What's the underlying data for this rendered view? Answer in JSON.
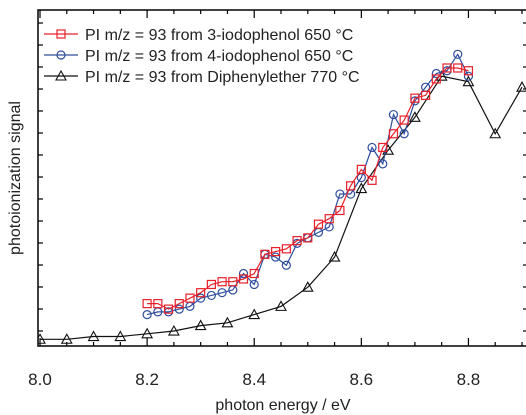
{
  "chart_data": {
    "type": "line",
    "xlabel": "photon energy / eV",
    "ylabel": "photoionization signal",
    "xlim": [
      8.0,
      8.9
    ],
    "ylim": [
      0,
      1
    ],
    "x_ticks": [
      "8.0",
      "8.2",
      "8.4",
      "8.6",
      "8.8"
    ],
    "x_tick_values": [
      8.0,
      8.2,
      8.4,
      8.6,
      8.8
    ],
    "y_tick_labels_shown": false,
    "grid": false,
    "legend_position": "top-left",
    "series": [
      {
        "name": "PI m/z = 93 from 3-iodophenol 650 °C",
        "color": "#e8202a",
        "marker": "square",
        "x": [
          8.2,
          8.22,
          8.24,
          8.26,
          8.28,
          8.3,
          8.32,
          8.34,
          8.36,
          8.38,
          8.4,
          8.42,
          8.44,
          8.46,
          8.48,
          8.5,
          8.52,
          8.54,
          8.56,
          8.58,
          8.6,
          8.62,
          8.64,
          8.66,
          8.68,
          8.7,
          8.72,
          8.74,
          8.76,
          8.78,
          8.8
        ],
        "values": [
          0.14,
          0.14,
          0.12,
          0.14,
          0.16,
          0.18,
          0.21,
          0.22,
          0.22,
          0.23,
          0.25,
          0.32,
          0.33,
          0.34,
          0.37,
          0.38,
          0.43,
          0.45,
          0.48,
          0.57,
          0.63,
          0.59,
          0.71,
          0.76,
          0.81,
          0.89,
          0.9,
          0.96,
          1.0,
          1.0,
          0.99
        ]
      },
      {
        "name": "PI m/z = 93 from 4-iodophenol 650 °C",
        "color": "#2e4d9c",
        "marker": "circle",
        "x": [
          8.2,
          8.22,
          8.24,
          8.26,
          8.28,
          8.3,
          8.32,
          8.34,
          8.36,
          8.38,
          8.4,
          8.42,
          8.44,
          8.46,
          8.48,
          8.5,
          8.52,
          8.54,
          8.56,
          8.58,
          8.6,
          8.62,
          8.64,
          8.66,
          8.68,
          8.7,
          8.72,
          8.74,
          8.76,
          8.78,
          8.8
        ],
        "values": [
          0.1,
          0.11,
          0.11,
          0.12,
          0.13,
          0.16,
          0.17,
          0.18,
          0.19,
          0.25,
          0.21,
          0.32,
          0.31,
          0.28,
          0.36,
          0.38,
          0.4,
          0.42,
          0.54,
          0.54,
          0.6,
          0.71,
          0.65,
          0.83,
          0.76,
          0.88,
          0.93,
          0.98,
          0.99,
          1.05,
          0.97
        ]
      },
      {
        "name": "PI m/z = 93 from Diphenylether 770 °C",
        "color": "#111111",
        "marker": "triangle",
        "x": [
          8.0,
          8.05,
          8.1,
          8.15,
          8.2,
          8.25,
          8.3,
          8.35,
          8.4,
          8.45,
          8.5,
          8.55,
          8.6,
          8.65,
          8.7,
          8.75,
          8.8,
          8.85,
          8.9
        ],
        "values": [
          0.01,
          0.01,
          0.02,
          0.02,
          0.03,
          0.04,
          0.06,
          0.07,
          0.1,
          0.13,
          0.2,
          0.31,
          0.56,
          0.7,
          0.82,
          0.97,
          0.95,
          0.76,
          0.93
        ]
      }
    ]
  }
}
